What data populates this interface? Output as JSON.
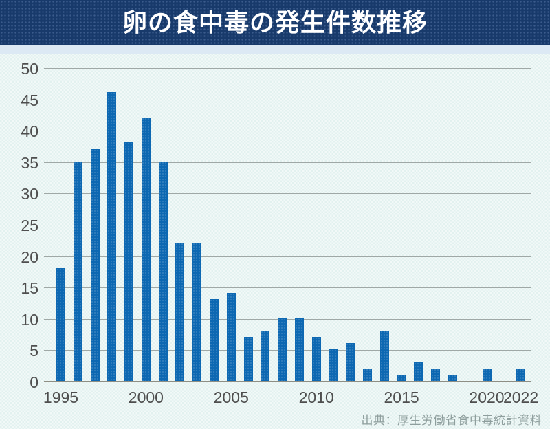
{
  "header": {
    "title": "卵の食中毒の発生件数推移"
  },
  "footer": {
    "source": "出典：厚生労働省食中毒統計資料"
  },
  "colors": {
    "header_bg": "#183a6b",
    "title_text": "#ffffff",
    "chart_bg": "#e2f1ef",
    "band_bg": "#dce9f4",
    "bar": "#0d68b2",
    "gridline": "#9fa8a6",
    "axis_text": "#4e4e4e",
    "source_text": "#8e9e9d"
  },
  "chart_data": {
    "type": "bar",
    "title": "卵の食中毒の発生件数推移",
    "categories": [
      1995,
      1996,
      1997,
      1998,
      1999,
      2000,
      2001,
      2002,
      2003,
      2004,
      2005,
      2006,
      2007,
      2008,
      2009,
      2010,
      2011,
      2012,
      2013,
      2014,
      2015,
      2016,
      2017,
      2018,
      2019,
      2020,
      2021,
      2022
    ],
    "values": [
      18,
      35,
      37,
      46,
      38,
      42,
      35,
      22,
      22,
      13,
      14,
      7,
      8,
      10,
      10,
      7,
      5,
      6,
      2,
      8,
      1,
      3,
      2,
      1,
      0,
      2,
      0,
      2
    ],
    "xlabel": "",
    "ylabel": "",
    "ylim": [
      0,
      50
    ],
    "ytick_step": 5,
    "yticks": [
      0,
      5,
      10,
      15,
      20,
      25,
      30,
      35,
      40,
      45,
      50
    ],
    "xtick_years": [
      1995,
      2000,
      2005,
      2010,
      2015,
      2020,
      2022
    ],
    "grid": true,
    "legend": false,
    "source": "出典：厚生労働省食中毒統計資料"
  }
}
